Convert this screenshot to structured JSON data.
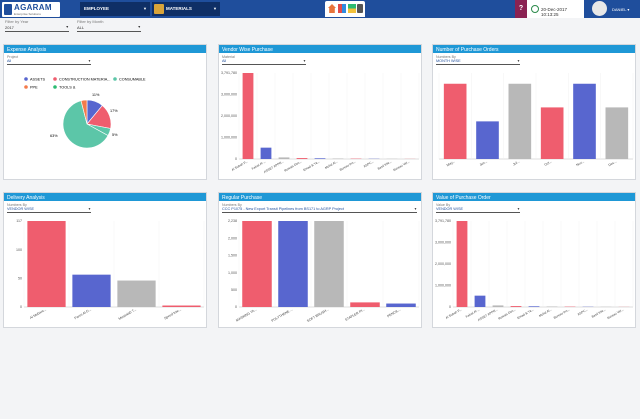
{
  "header": {
    "logo_name": "AGARAM",
    "logo_sub": "Enterprise Solutions",
    "nav1": "EMPLOYEE",
    "nav2": "MATERIALS",
    "help": "?",
    "datetime": "20-Dec-2017 10:13:25",
    "user": "DANIEL ▾"
  },
  "filters": {
    "year_label": "Filter by Year",
    "year_value": "2017",
    "month_label": "Filter by Month",
    "month_value": "ALL"
  },
  "colors": {
    "red": "#ef5d6e",
    "blue": "#5866cf",
    "grey": "#b8b8b8",
    "teal": "#5cc6a8",
    "orange": "#f47b4c",
    "green": "#2dbb72",
    "header": "#1f98d6"
  },
  "cards": {
    "expense": {
      "title": "Expense Analysis",
      "filter_label": "Project",
      "filter_value": "All",
      "legend": [
        "ASSETS",
        "CONSTRUCTION MATERIA...",
        "CONSUMABLE",
        "PPE",
        "TOOLS &"
      ],
      "slices": [
        "11%",
        "17%",
        "5%",
        "63%"
      ]
    },
    "vendor": {
      "title": "Vendor Wise Purchase",
      "filter_label": "Material",
      "filter_value": "All",
      "ylabels": [
        "3,791,780",
        "3,000,000",
        "2,000,000",
        "1,000,000",
        "0"
      ],
      "xlabels": [
        "Al Subah P...",
        "Faisal Al-...",
        "ASSET APPR...",
        "Ruwais Des...",
        "Emad & Ya...",
        "Mohd Al...",
        "Bureau Ins...",
        "ASPC...",
        "Basil Inte...",
        "Bureau Ver..."
      ]
    },
    "orders": {
      "title": "Number of Purchase Orders",
      "filter_label": "Numbers By",
      "filter_value": "MONTH WISE",
      "xlabels": [
        "May...",
        "Jun...",
        "Jul...",
        "Oct...",
        "Nov...",
        "Dec..."
      ]
    },
    "delivery": {
      "title": "Delivery Analysis",
      "filter_label": "Numbers By",
      "filter_value": "VENDOR WISE",
      "ylabels": [
        "117",
        "100",
        "50",
        "0"
      ],
      "xlabels": [
        "Al Mubara...",
        "Fares Al-D...",
        "Mussaiab T...",
        "Speed Inte..."
      ]
    },
    "regular": {
      "title": "Regular Purchase",
      "filter_label": "Numbers By",
      "filter_value": "CCC P1075 - New Export Transit Pipelines from BS171 to AGRP Project",
      "ylabels": [
        "2,238",
        "2,000",
        "1,500",
        "1,000",
        "500",
        "0"
      ],
      "xlabels": [
        "MASKING TA...",
        "POLYTHENE ...",
        "SOFT BRUSH...",
        "STAPLER PI...",
        "PENCIL..."
      ]
    },
    "value": {
      "title": "Value of Purchase Order",
      "filter_label": "Value By",
      "filter_value": "VENDOR WISE",
      "ylabels": [
        "3,791,780",
        "3,000,000",
        "2,000,000",
        "1,000,000",
        "0"
      ],
      "xlabels": [
        "Al Subah P...",
        "Faisal Al-...",
        "ASSET APPR...",
        "Ruwais Des...",
        "Emad & Ya...",
        "Mohd Al...",
        "Bureau Ins...",
        "ASPC...",
        "Basil Inte...",
        "Bureau Ver..."
      ]
    }
  },
  "chart_data": [
    {
      "type": "pie",
      "title": "Expense Analysis",
      "categories": [
        "ASSETS",
        "CONSTRUCTION MATERIA...",
        "CONSUMABLE",
        "PPE",
        "TOOLS &"
      ],
      "values": [
        11,
        17,
        5,
        63,
        4
      ]
    },
    {
      "type": "bar",
      "title": "Vendor Wise Purchase",
      "categories": [
        "Al Subah P...",
        "Faisal Al-...",
        "ASSET APPR...",
        "Ruwais Des...",
        "Emad & Ya...",
        "Mohd Al...",
        "Bureau Ins...",
        "ASPC...",
        "Basil Inte...",
        "Bureau Ver..."
      ],
      "values": [
        3791780,
        500000,
        70000,
        40000,
        30000,
        20000,
        15000,
        10000,
        8000,
        5000
      ],
      "ylim": [
        0,
        3791780
      ]
    },
    {
      "type": "bar",
      "title": "Number of Purchase Orders",
      "categories": [
        "May...",
        "Jun...",
        "Jul...",
        "Oct...",
        "Nov...",
        "Dec..."
      ],
      "values": [
        7,
        3.5,
        7,
        4.8,
        7,
        4.8
      ],
      "ylim": [
        0,
        8
      ]
    },
    {
      "type": "bar",
      "title": "Delivery Analysis",
      "categories": [
        "Al Mubara...",
        "Fares Al-D...",
        "Mussaiab T...",
        "Speed Inte..."
      ],
      "values": [
        117,
        44,
        36,
        2
      ],
      "ylim": [
        0,
        117
      ]
    },
    {
      "type": "bar",
      "title": "Regular Purchase",
      "categories": [
        "MASKING TA...",
        "POLYTHENE ...",
        "SOFT BRUSH...",
        "STAPLER PI...",
        "PENCIL..."
      ],
      "values": [
        2238,
        2238,
        2238,
        120,
        90
      ],
      "ylim": [
        0,
        2238
      ]
    },
    {
      "type": "bar",
      "title": "Value of Purchase Order",
      "categories": [
        "Al Subah P...",
        "Faisal Al-...",
        "ASSET APPR...",
        "Ruwais Des...",
        "Emad & Ya...",
        "Mohd Al...",
        "Bureau Ins...",
        "ASPC...",
        "Basil Inte...",
        "Bureau Ver..."
      ],
      "values": [
        3791780,
        500000,
        70000,
        40000,
        30000,
        20000,
        15000,
        10000,
        8000,
        5000
      ],
      "ylim": [
        0,
        3791780
      ]
    }
  ]
}
